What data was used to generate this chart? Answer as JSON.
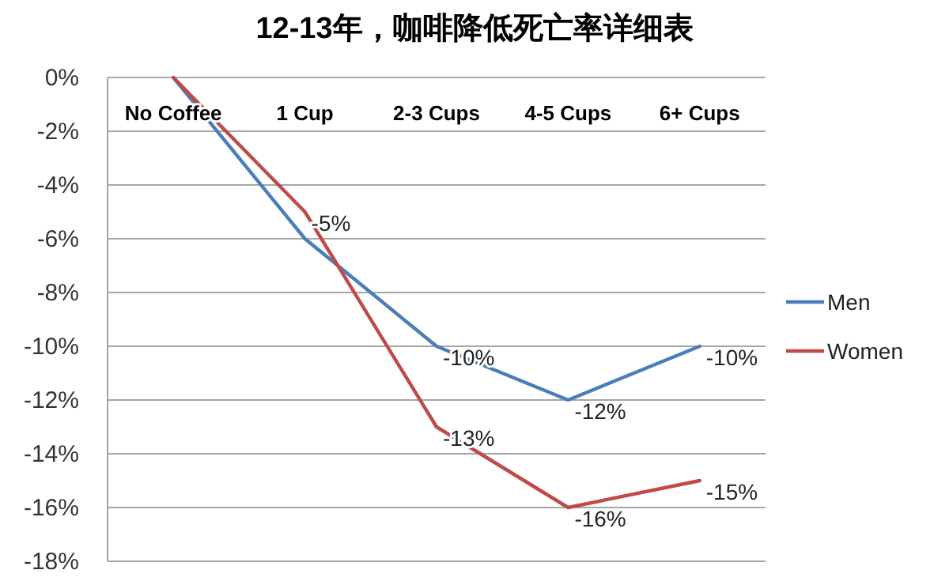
{
  "chart_data": {
    "type": "line",
    "title": "12-13年，咖啡降低死亡率详细表",
    "categories": [
      "No Coffee",
      "1 Cup",
      "2-3 Cups",
      "4-5 Cups",
      "6+ Cups"
    ],
    "series": [
      {
        "name": "Men",
        "color": "#4a7ebb",
        "values": [
          0,
          -6,
          -10,
          -12,
          -10
        ],
        "value_labels": [
          null,
          null,
          "-10%",
          "-12%",
          "-10%"
        ]
      },
      {
        "name": "Women",
        "color": "#be4b48",
        "values": [
          0,
          -5,
          -13,
          -16,
          -15
        ],
        "value_labels": [
          null,
          "-5%",
          "-13%",
          "-16%",
          "-15%"
        ]
      }
    ],
    "ylim": [
      -18,
      0
    ],
    "yticks": [
      {
        "value": 0,
        "label": "0%"
      },
      {
        "value": -2,
        "label": "-2%"
      },
      {
        "value": -4,
        "label": "-4%"
      },
      {
        "value": -6,
        "label": "-6%"
      },
      {
        "value": -8,
        "label": "-8%"
      },
      {
        "value": -10,
        "label": "-10%"
      },
      {
        "value": -12,
        "label": "-12%"
      },
      {
        "value": -14,
        "label": "-14%"
      },
      {
        "value": -16,
        "label": "-16%"
      },
      {
        "value": -18,
        "label": "-18%"
      }
    ],
    "grid": "y",
    "legend": "right",
    "marker": "none",
    "line_style": "solid"
  }
}
